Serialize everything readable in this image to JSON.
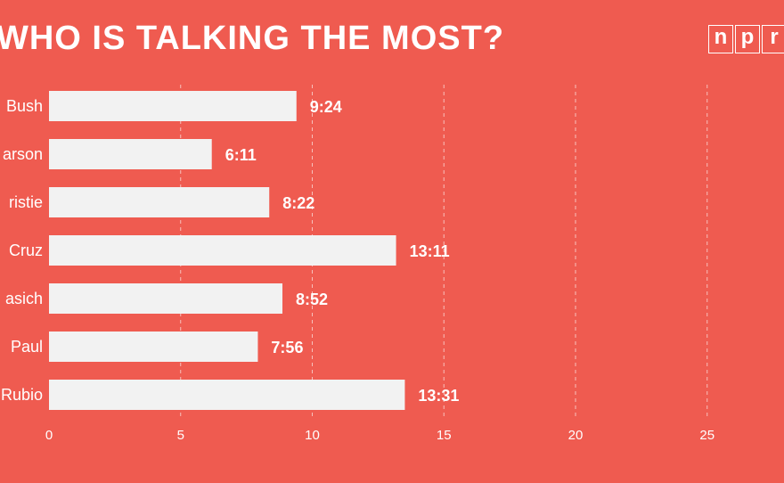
{
  "title": "WHO IS TALKING THE MOST?",
  "logo": {
    "letters": [
      "n",
      "p",
      "r"
    ]
  },
  "colors": {
    "background": "#ef5b50",
    "bar": "#f2f2f2",
    "text": "#ffffff",
    "grid": "#f7c0bb"
  },
  "chart_data": {
    "type": "bar",
    "orientation": "horizontal",
    "title": "WHO IS TALKING THE MOST?",
    "categories": [
      "Bush",
      "arson",
      "ristie",
      "Cruz",
      "asich",
      "Paul",
      "Rubio"
    ],
    "values": [
      9.4,
      6.1833,
      8.3667,
      13.1833,
      8.8667,
      7.9333,
      13.5167
    ],
    "value_labels": [
      "9:24",
      "6:11",
      "8:22",
      "13:11",
      "8:52",
      "7:56",
      "13:31"
    ],
    "xlim": [
      0,
      30
    ],
    "xticks": [
      0,
      5,
      10,
      15,
      20,
      25
    ],
    "xtick_labels": [
      "0",
      "5",
      "10",
      "15",
      "20",
      "25"
    ],
    "grid": "vertical dashed",
    "xlabel": "",
    "ylabel": ""
  }
}
